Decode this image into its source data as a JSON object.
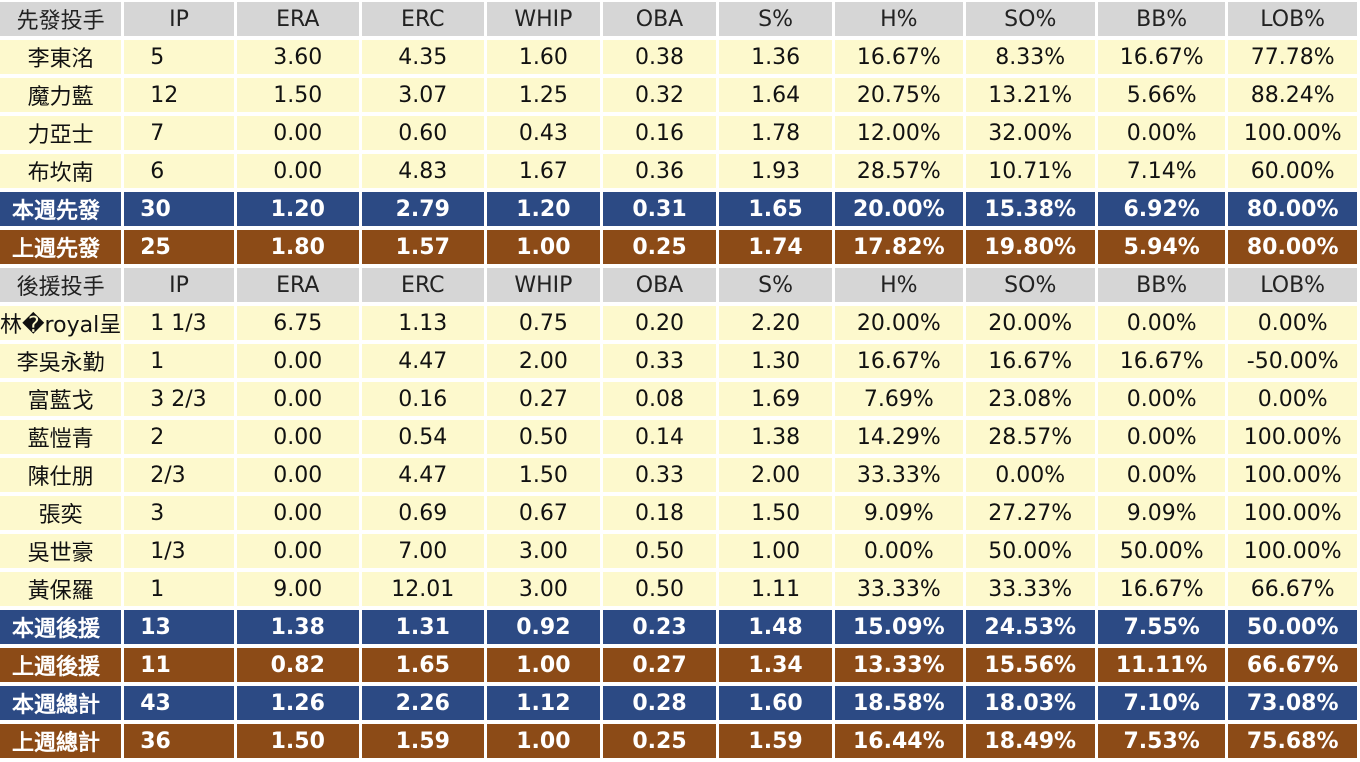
{
  "chart_data": {
    "type": "table",
    "columns": [
      "IP",
      "ERA",
      "ERC",
      "WHIP",
      "OBA",
      "S%",
      "H%",
      "SO%",
      "BB%",
      "LOB%"
    ],
    "sections": [
      {
        "header": "先發投手",
        "rows": [
          {
            "name": "李東洺",
            "values": [
              "5",
              "3.60",
              "4.35",
              "1.60",
              "0.38",
              "1.36",
              "16.67%",
              "8.33%",
              "16.67%",
              "77.78%"
            ]
          },
          {
            "name": "魔力藍",
            "values": [
              "12",
              "1.50",
              "3.07",
              "1.25",
              "0.32",
              "1.64",
              "20.75%",
              "13.21%",
              "5.66%",
              "88.24%"
            ]
          },
          {
            "name": "力亞士",
            "values": [
              "7",
              "0.00",
              "0.60",
              "0.43",
              "0.16",
              "1.78",
              "12.00%",
              "32.00%",
              "0.00%",
              "100.00%"
            ]
          },
          {
            "name": "布坎南",
            "values": [
              "6",
              "0.00",
              "4.83",
              "1.67",
              "0.36",
              "1.93",
              "28.57%",
              "10.71%",
              "7.14%",
              "60.00%"
            ]
          }
        ],
        "totals": [
          {
            "name": "本週先發",
            "style": "blue",
            "values": [
              "30",
              "1.20",
              "2.79",
              "1.20",
              "0.31",
              "1.65",
              "20.00%",
              "15.38%",
              "6.92%",
              "80.00%"
            ]
          },
          {
            "name": "上週先發",
            "style": "brown",
            "values": [
              "25",
              "1.80",
              "1.57",
              "1.00",
              "0.25",
              "1.74",
              "17.82%",
              "19.80%",
              "5.94%",
              "80.00%"
            ]
          }
        ]
      },
      {
        "header": "後援投手",
        "rows": [
          {
            "name": "林�royal呈",
            "values": [
              "1 1/3",
              "6.75",
              "1.13",
              "0.75",
              "0.20",
              "2.20",
              "20.00%",
              "20.00%",
              "0.00%",
              "0.00%"
            ]
          },
          {
            "name": "李吳永勤",
            "values": [
              "1",
              "0.00",
              "4.47",
              "2.00",
              "0.33",
              "1.30",
              "16.67%",
              "16.67%",
              "16.67%",
              "-50.00%"
            ]
          },
          {
            "name": "富藍戈",
            "values": [
              "3 2/3",
              "0.00",
              "0.16",
              "0.27",
              "0.08",
              "1.69",
              "7.69%",
              "23.08%",
              "0.00%",
              "0.00%"
            ]
          },
          {
            "name": "藍愷青",
            "values": [
              "2",
              "0.00",
              "0.54",
              "0.50",
              "0.14",
              "1.38",
              "14.29%",
              "28.57%",
              "0.00%",
              "100.00%"
            ]
          },
          {
            "name": "陳仕朋",
            "values": [
              " 2/3",
              "0.00",
              "4.47",
              "1.50",
              "0.33",
              "2.00",
              "33.33%",
              "0.00%",
              "0.00%",
              "100.00%"
            ]
          },
          {
            "name": "張奕",
            "values": [
              "3",
              "0.00",
              "0.69",
              "0.67",
              "0.18",
              "1.50",
              "9.09%",
              "27.27%",
              "9.09%",
              "100.00%"
            ]
          },
          {
            "name": "吳世豪",
            "values": [
              " 1/3",
              "0.00",
              "7.00",
              "3.00",
              "0.50",
              "1.00",
              "0.00%",
              "50.00%",
              "50.00%",
              "100.00%"
            ]
          },
          {
            "name": "黃保羅",
            "values": [
              "1",
              "9.00",
              "12.01",
              "3.00",
              "0.50",
              "1.11",
              "33.33%",
              "33.33%",
              "16.67%",
              "66.67%"
            ]
          }
        ],
        "totals": [
          {
            "name": "本週後援",
            "style": "blue",
            "values": [
              "13",
              "1.38",
              "1.31",
              "0.92",
              "0.23",
              "1.48",
              "15.09%",
              "24.53%",
              "7.55%",
              "50.00%"
            ]
          },
          {
            "name": "上週後援",
            "style": "brown",
            "values": [
              "11",
              "0.82",
              "1.65",
              "1.00",
              "0.27",
              "1.34",
              "13.33%",
              "15.56%",
              "11.11%",
              "66.67%"
            ]
          },
          {
            "name": "本週總計",
            "style": "blue",
            "values": [
              "43",
              "1.26",
              "2.26",
              "1.12",
              "0.28",
              "1.60",
              "18.58%",
              "18.03%",
              "7.10%",
              "73.08%"
            ]
          },
          {
            "name": "上週總計",
            "style": "brown",
            "values": [
              "36",
              "1.50",
              "1.59",
              "1.00",
              "0.25",
              "1.59",
              "16.44%",
              "18.49%",
              "7.53%",
              "75.68%"
            ]
          }
        ]
      }
    ]
  },
  "colors": {
    "header_bg": "#d6d6d6",
    "row_bg": "#fdf9cd",
    "blue_total": "#2c4a84",
    "brown_total": "#8c4b17"
  }
}
